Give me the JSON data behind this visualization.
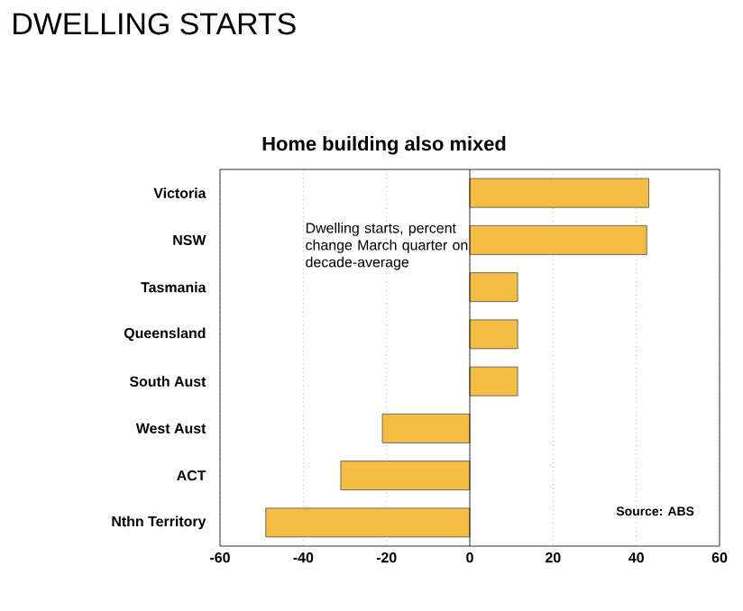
{
  "chart_data": {
    "type": "bar",
    "orientation": "horizontal",
    "title": "DWELLING STARTS",
    "subtitle": "Home building also mixed",
    "categories": [
      "Victoria",
      "NSW",
      "Tasmania",
      "Queensland",
      "South Aust",
      "West Aust",
      "ACT",
      "Nthn Territory"
    ],
    "values": [
      43,
      42.5,
      11.5,
      11.5,
      11.5,
      -21,
      -31,
      -49
    ],
    "color": "#f5bd43",
    "xlim": [
      -60,
      60
    ],
    "xticks": [
      -60,
      -40,
      -20,
      0,
      20,
      40,
      60
    ],
    "grid": "x",
    "annotations": [
      "Dwelling starts, percent change March quarter on decade-average",
      "Source: ABS"
    ]
  }
}
